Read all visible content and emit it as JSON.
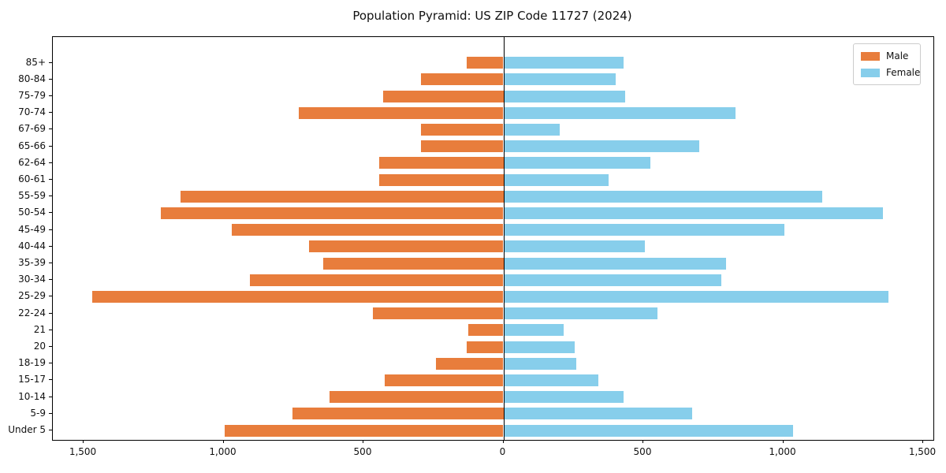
{
  "title": "Population Pyramid: US ZIP Code 11727 (2024)",
  "legend": {
    "male_label": "Male",
    "female_label": "Female"
  },
  "colors": {
    "male": "#e87d3c",
    "female": "#87ceeb",
    "axis": "#000000",
    "legend_border": "#cccccc"
  },
  "x_axis": {
    "tick_values": [
      -1500,
      -1000,
      -500,
      0,
      500,
      1000,
      1500
    ],
    "tick_labels": [
      "1,500",
      "1,000",
      "500",
      "0",
      "500",
      "1,000",
      "1,500"
    ]
  },
  "chart_data": {
    "type": "bar",
    "variant": "population-pyramid",
    "orientation": "horizontal",
    "title": "Population Pyramid: US ZIP Code 11727 (2024)",
    "categories_order": "bottom-to-top",
    "categories": [
      "Under 5",
      "5-9",
      "10-14",
      "15-17",
      "18-19",
      "20",
      "21",
      "22-24",
      "25-29",
      "30-34",
      "35-39",
      "40-44",
      "45-49",
      "50-54",
      "55-59",
      "60-61",
      "62-64",
      "65-66",
      "67-69",
      "70-74",
      "75-79",
      "80-84",
      "85+"
    ],
    "series": [
      {
        "name": "Male",
        "side": "left",
        "values": [
          995,
          755,
          620,
          425,
          240,
          130,
          125,
          465,
          1470,
          905,
          645,
          695,
          970,
          1225,
          1155,
          445,
          445,
          295,
          295,
          730,
          430,
          295,
          130
        ]
      },
      {
        "name": "Female",
        "side": "right",
        "values": [
          1035,
          675,
          430,
          340,
          260,
          255,
          215,
          550,
          1375,
          780,
          795,
          505,
          1005,
          1355,
          1140,
          375,
          525,
          700,
          200,
          830,
          435,
          400,
          430
        ]
      }
    ],
    "xlim": [
      -1611,
      1535
    ],
    "grid": false,
    "legend_position": "upper right",
    "center_line_at_zero": true
  }
}
